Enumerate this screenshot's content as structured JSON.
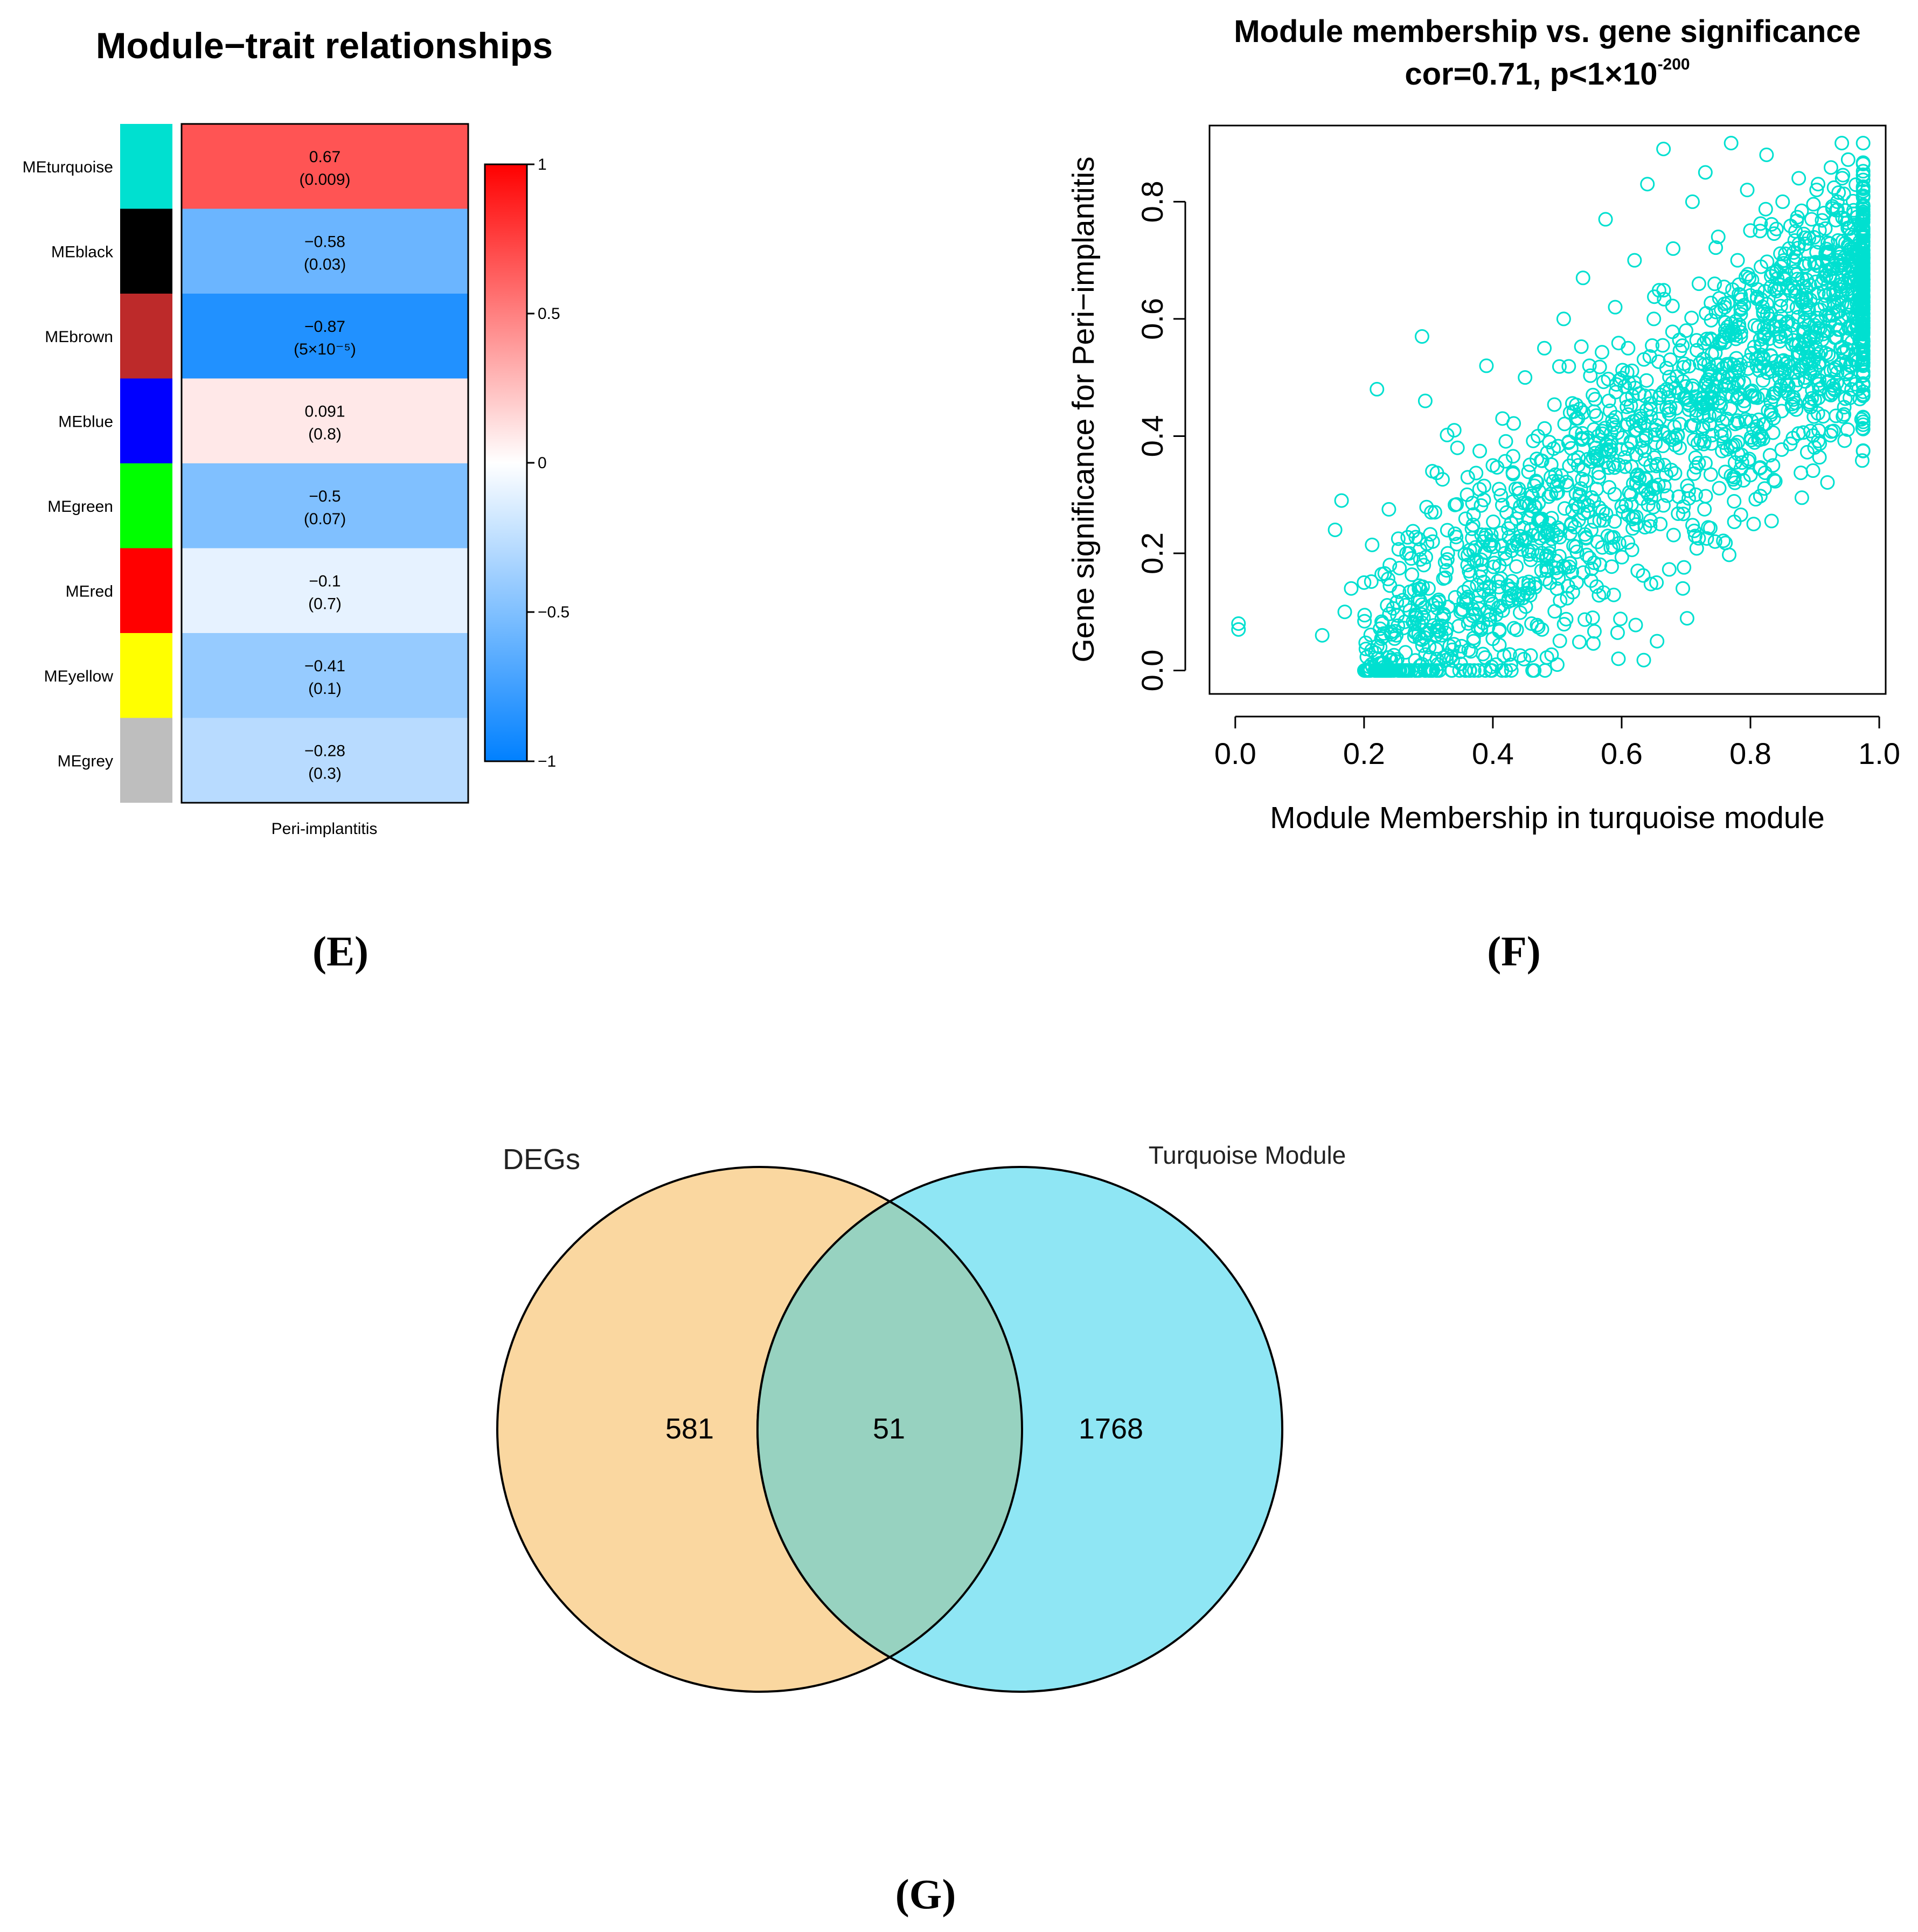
{
  "chart_data": [
    {
      "id": "E",
      "type": "heatmap",
      "title": "Module−trait relationships",
      "xlabel": "Peri-implantitis",
      "rows": [
        {
          "label": "MEturquoise",
          "module_color": "#00E0D0",
          "value": 0.67,
          "pvalue": "(0.009)"
        },
        {
          "label": "MEblack",
          "module_color": "#000000",
          "value": -0.58,
          "pvalue": "(0.03)"
        },
        {
          "label": "MEbrown",
          "module_color": "#BD2A2A",
          "value": -0.87,
          "pvalue": "(5×10⁻⁵)"
        },
        {
          "label": "MEblue",
          "module_color": "#0000FF",
          "value": 0.091,
          "pvalue": "(0.8)"
        },
        {
          "label": "MEgreen",
          "module_color": "#00FF00",
          "value": -0.5,
          "pvalue": "(0.07)"
        },
        {
          "label": "MEred",
          "module_color": "#FF0000",
          "value": -0.1,
          "pvalue": "(0.7)"
        },
        {
          "label": "MEyellow",
          "module_color": "#FFFF00",
          "value": -0.41,
          "pvalue": "(0.1)"
        },
        {
          "label": "MEgrey",
          "module_color": "#BEBEBE",
          "value": -0.28,
          "pvalue": "(0.3)"
        }
      ],
      "value_labels": [
        "0.67",
        "−0.58",
        "−0.87",
        "0.091",
        "−0.5",
        "−0.1",
        "−0.41",
        "−0.28"
      ],
      "colorbar": {
        "range": [
          -1,
          1
        ],
        "ticks": [
          1,
          0.5,
          0,
          -0.5,
          -1
        ],
        "tick_labels": [
          "1",
          "0.5",
          "0",
          "−0.5",
          "−1"
        ]
      },
      "panel_label": "(E)"
    },
    {
      "id": "F",
      "type": "scatter",
      "title": "Module membership vs. gene significance",
      "subtitle": "cor=0.71, p<1×10",
      "subtitle_exponent": "-200",
      "xlabel": "Module Membership in turquoise module",
      "ylabel": "Gene significance for Peri−implantitis",
      "xlim": [
        -0.04,
        1.01
      ],
      "ylim": [
        -0.04,
        0.93
      ],
      "xticks": [
        0.0,
        0.2,
        0.4,
        0.6,
        0.8,
        1.0
      ],
      "xtick_labels": [
        "0.0",
        "0.2",
        "0.4",
        "0.6",
        "0.8",
        "1.0"
      ],
      "yticks": [
        0.0,
        0.2,
        0.4,
        0.6,
        0.8
      ],
      "ytick_labels": [
        "0.0",
        "0.2",
        "0.4",
        "0.6",
        "0.8"
      ],
      "point_color": "#00E0D0",
      "n_points": 1819,
      "correlation": 0.71,
      "points": [
        [
          0.005,
          0.08
        ],
        [
          0.005,
          0.07
        ],
        [
          0.135,
          0.06
        ],
        [
          0.155,
          0.24
        ],
        [
          0.165,
          0.29
        ],
        [
          0.17,
          0.1
        ],
        [
          0.18,
          0.14
        ],
        [
          0.2,
          0.15
        ],
        [
          0.22,
          0.48
        ],
        [
          0.225,
          0.04
        ],
        [
          0.24,
          0.18
        ],
        [
          0.25,
          0.06
        ],
        [
          0.26,
          0.12
        ],
        [
          0.27,
          0.2
        ],
        [
          0.28,
          0.09
        ],
        [
          0.29,
          0.57
        ],
        [
          0.295,
          0.46
        ],
        [
          0.3,
          0.14
        ],
        [
          0.31,
          0.27
        ],
        [
          0.32,
          0.06
        ],
        [
          0.33,
          0.2
        ],
        [
          0.34,
          0.41
        ],
        [
          0.345,
          0.38
        ],
        [
          0.35,
          0.1
        ],
        [
          0.36,
          0.3
        ],
        [
          0.37,
          0.05
        ],
        [
          0.38,
          0.16
        ],
        [
          0.385,
          0.22
        ],
        [
          0.39,
          0.52
        ],
        [
          0.4,
          0.35
        ],
        [
          0.405,
          0.01
        ],
        [
          0.41,
          0.07
        ],
        [
          0.415,
          0.43
        ],
        [
          0.42,
          0.19
        ],
        [
          0.43,
          0.12
        ],
        [
          0.44,
          0.31
        ],
        [
          0.45,
          0.5
        ],
        [
          0.455,
          0.26
        ],
        [
          0.46,
          0.08
        ],
        [
          0.47,
          0.4
        ],
        [
          0.48,
          0.55
        ],
        [
          0.485,
          0.17
        ],
        [
          0.49,
          0.33
        ],
        [
          0.5,
          0.01
        ],
        [
          0.505,
          0.24
        ],
        [
          0.51,
          0.6
        ],
        [
          0.52,
          0.44
        ],
        [
          0.53,
          0.15
        ],
        [
          0.535,
          0.3
        ],
        [
          0.54,
          0.67
        ],
        [
          0.55,
          0.52
        ],
        [
          0.555,
          0.09
        ],
        [
          0.56,
          0.38
        ],
        [
          0.57,
          0.21
        ],
        [
          0.575,
          0.77
        ],
        [
          0.58,
          0.46
        ],
        [
          0.59,
          0.62
        ],
        [
          0.595,
          0.02
        ],
        [
          0.6,
          0.28
        ],
        [
          0.61,
          0.55
        ],
        [
          0.62,
          0.7
        ],
        [
          0.625,
          0.17
        ],
        [
          0.63,
          0.43
        ],
        [
          0.64,
          0.83
        ],
        [
          0.645,
          0.35
        ],
        [
          0.65,
          0.6
        ],
        [
          0.655,
          0.05
        ],
        [
          0.66,
          0.25
        ],
        [
          0.665,
          0.89
        ],
        [
          0.67,
          0.48
        ],
        [
          0.68,
          0.72
        ],
        [
          0.69,
          0.38
        ],
        [
          0.695,
          0.14
        ],
        [
          0.7,
          0.58
        ],
        [
          0.71,
          0.8
        ],
        [
          0.715,
          0.3
        ],
        [
          0.72,
          0.66
        ],
        [
          0.725,
          0.45
        ],
        [
          0.73,
          0.85
        ],
        [
          0.74,
          0.54
        ],
        [
          0.745,
          0.22
        ],
        [
          0.75,
          0.74
        ],
        [
          0.755,
          0.4
        ],
        [
          0.76,
          0.62
        ],
        [
          0.765,
          0.5
        ],
        [
          0.77,
          0.9
        ],
        [
          0.775,
          0.33
        ],
        [
          0.78,
          0.7
        ],
        [
          0.785,
          0.57
        ],
        [
          0.79,
          0.46
        ],
        [
          0.795,
          0.82
        ],
        [
          0.8,
          0.64
        ],
        [
          0.805,
          0.25
        ],
        [
          0.81,
          0.52
        ],
        [
          0.815,
          0.75
        ],
        [
          0.82,
          0.42
        ],
        [
          0.825,
          0.88
        ],
        [
          0.83,
          0.6
        ],
        [
          0.835,
          0.35
        ],
        [
          0.84,
          0.68
        ],
        [
          0.845,
          0.5
        ],
        [
          0.85,
          0.8
        ],
        [
          0.855,
          0.57
        ],
        [
          0.86,
          0.72
        ],
        [
          0.865,
          0.45
        ],
        [
          0.87,
          0.64
        ],
        [
          0.875,
          0.84
        ],
        [
          0.88,
          0.55
        ],
        [
          0.885,
          0.69
        ],
        [
          0.89,
          0.62
        ],
        [
          0.895,
          0.77
        ],
        [
          0.9,
          0.5
        ],
        [
          0.905,
          0.83
        ],
        [
          0.91,
          0.66
        ],
        [
          0.915,
          0.58
        ],
        [
          0.92,
          0.73
        ],
        [
          0.925,
          0.47
        ],
        [
          0.93,
          0.62
        ],
        [
          0.935,
          0.8
        ],
        [
          0.94,
          0.55
        ],
        [
          0.945,
          0.7
        ],
        [
          0.95,
          0.65
        ],
        [
          0.955,
          0.52
        ],
        [
          0.96,
          0.74
        ],
        [
          0.965,
          0.6
        ],
        [
          0.97,
          0.68
        ]
      ],
      "panel_label": "(F)"
    },
    {
      "id": "G",
      "type": "venn",
      "sets": [
        {
          "name": "DEGs",
          "color": "#FAD7A0"
        },
        {
          "name": "Turquoise Module",
          "color": "#8FE6F4"
        }
      ],
      "overlap_color": "#97D2C0",
      "values": {
        "only_first": 581,
        "intersection": 51,
        "only_second": 1768
      },
      "value_labels": [
        "581",
        "51",
        "1768"
      ],
      "panel_label": "(G)"
    }
  ]
}
